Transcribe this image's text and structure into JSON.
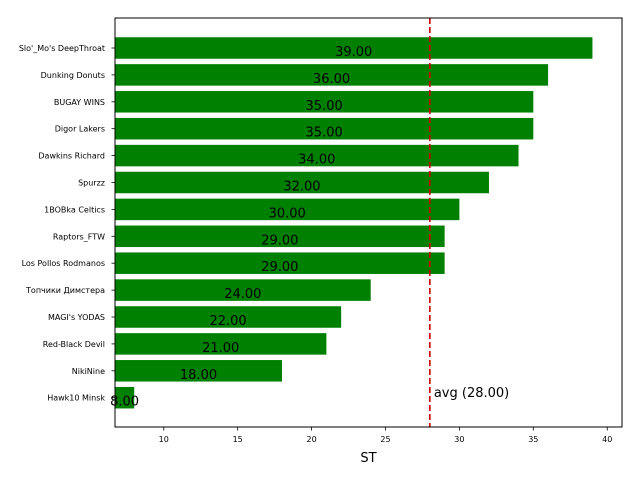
{
  "chart_data": {
    "type": "bar",
    "orientation": "horizontal",
    "categories": [
      "Slo'_Mo's DeepThroat",
      "Dunking Donuts",
      "BUGAY WINS",
      "Digor Lakers",
      "Dawkins Richard",
      "Spurzz",
      "1BOBka Celtics",
      "Raptors_FTW",
      "Los Pollos Rodmanos",
      "Топчики Димстера",
      "MAGI's YODAS",
      "Red-Black Devil",
      "NikiNine",
      "Hawk10 Minsk"
    ],
    "values": [
      39,
      36,
      35,
      35,
      34,
      32,
      30,
      29,
      29,
      24,
      22,
      21,
      18,
      8
    ],
    "value_labels": [
      "39.00",
      "36.00",
      "35.00",
      "35.00",
      "34.00",
      "32.00",
      "30.00",
      "29.00",
      "29.00",
      "24.00",
      "22.00",
      "21.00",
      "18.00",
      "8.00"
    ],
    "bar_color": "#008000",
    "xlabel": "ST",
    "xlim": [
      6.7,
      41.0
    ],
    "xticks": [
      10,
      15,
      20,
      25,
      30,
      35,
      40
    ],
    "xtick_labels": [
      "10",
      "15",
      "20",
      "25",
      "30",
      "35",
      "40"
    ],
    "reference_line": {
      "value": 28,
      "label": "avg (28.00)",
      "color": "#cc0000",
      "style": "dashed"
    },
    "grid": false
  }
}
